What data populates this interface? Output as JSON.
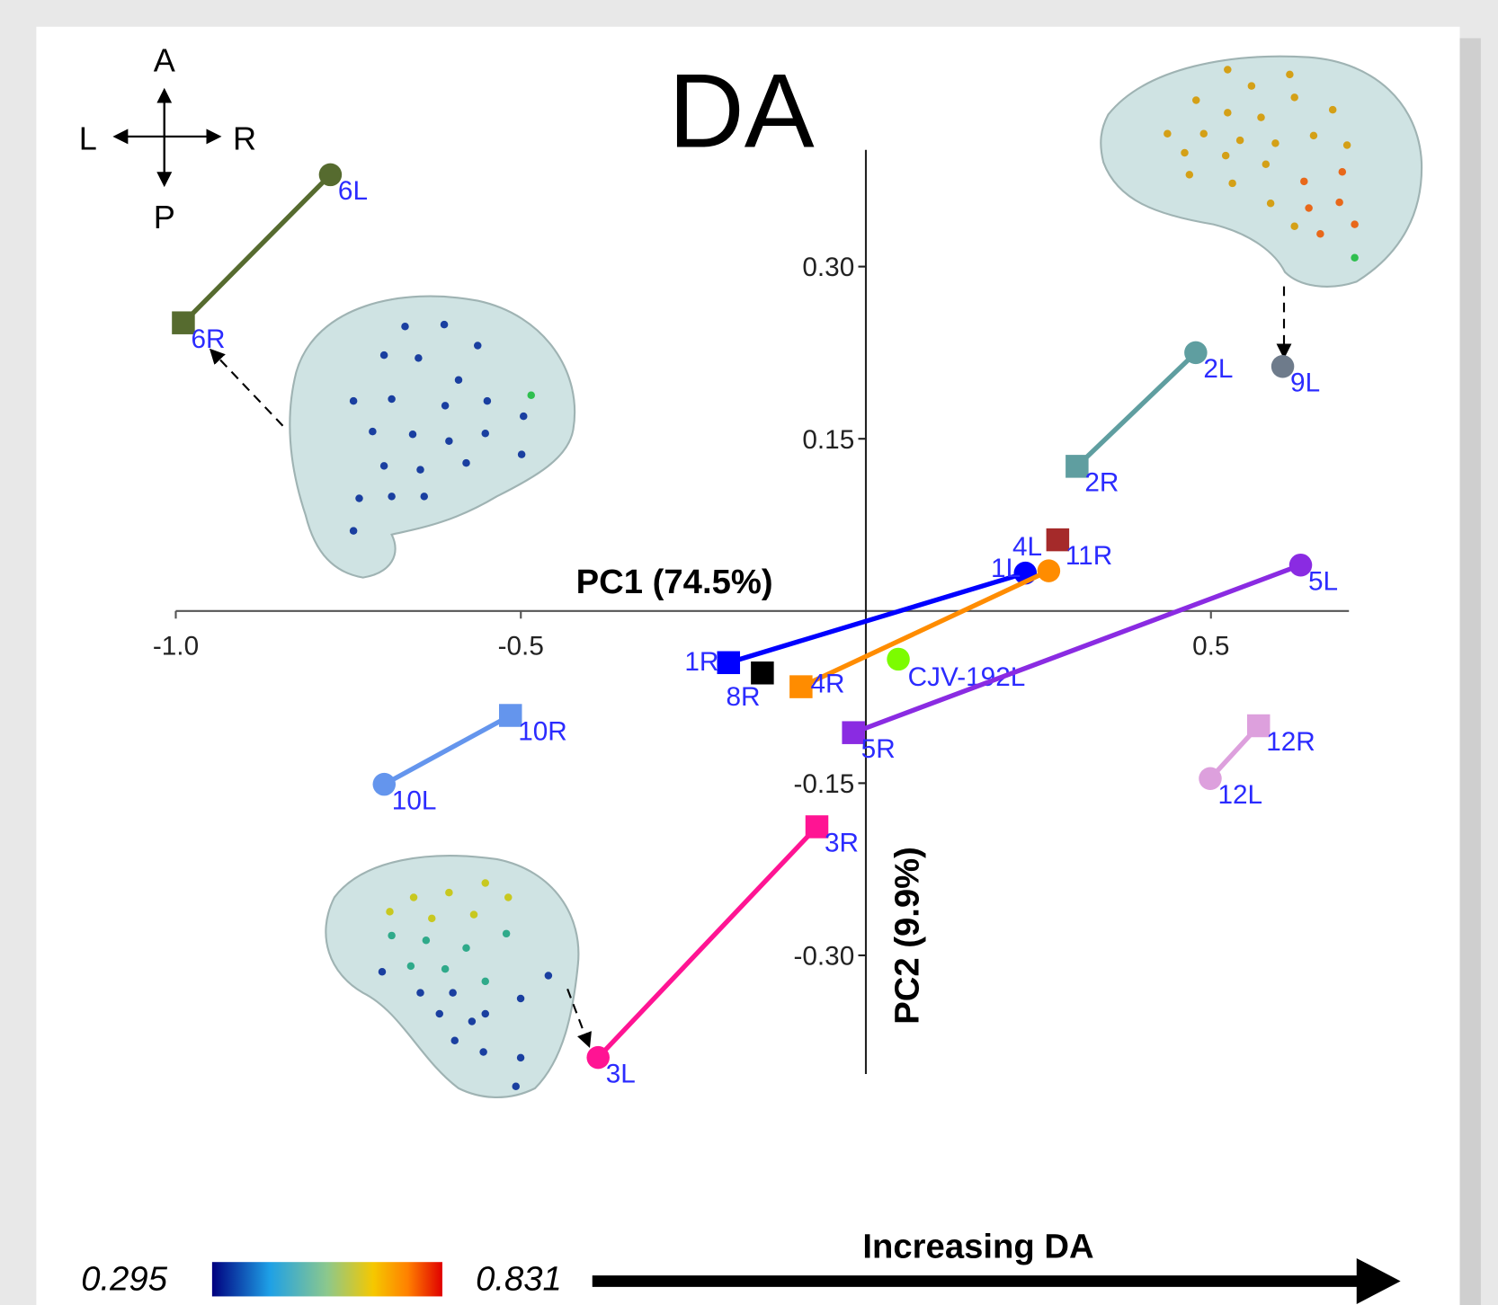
{
  "chart_data": {
    "type": "scatter",
    "title": "DA",
    "x_label": "PC1 (74.5%)",
    "y_label": "PC2 (9.9%)",
    "xlim": [
      -1.0,
      0.7
    ],
    "ylim": [
      -0.4,
      0.4
    ],
    "xticks": [
      {
        "value": -1.0,
        "label": "-1.0"
      },
      -0.5,
      0.5
    ],
    "yticks": [
      {
        "value": 0.3,
        "label": "0.30"
      },
      0.15,
      -0.15,
      {
        "value": -0.3,
        "label": "-0.30"
      }
    ],
    "series": [
      {
        "color": "#566b2f",
        "labels": [
          "6L",
          "6R"
        ],
        "markers": [
          "circle",
          "square"
        ],
        "x": [
          -0.776,
          -0.989
        ],
        "y": [
          0.38,
          0.251
        ]
      },
      {
        "color": "#5f9ea0",
        "labels": [
          "2L",
          "2R"
        ],
        "markers": [
          "circle",
          "square"
        ],
        "x": [
          0.478,
          0.306
        ],
        "y": [
          0.225,
          0.126
        ]
      },
      {
        "color": "#6e7b8b",
        "labels": [
          "9L"
        ],
        "markers": [
          "circle"
        ],
        "x": [
          0.604
        ],
        "y": [
          0.213
        ]
      },
      {
        "color": "#a52a2a",
        "labels": [
          "11R"
        ],
        "markers": [
          "square"
        ],
        "x": [
          0.278
        ],
        "y": [
          0.062
        ]
      },
      {
        "color": "#0000ff",
        "labels": [
          "1L",
          "1R"
        ],
        "markers": [
          "circle",
          "square"
        ],
        "x": [
          0.231,
          -0.199
        ],
        "y": [
          0.033,
          -0.045
        ]
      },
      {
        "color": "#ff8c00",
        "labels": [
          "4L",
          "4R"
        ],
        "markers": [
          "circle",
          "square"
        ],
        "x": [
          0.265,
          -0.094
        ],
        "y": [
          0.035,
          -0.066
        ]
      },
      {
        "color": "#000000",
        "labels": [
          "8R"
        ],
        "markers": [
          "square"
        ],
        "x": [
          -0.15
        ],
        "y": [
          -0.054
        ]
      },
      {
        "color": "#7cfc00",
        "labels": [
          "CJV-192L"
        ],
        "markers": [
          "circle"
        ],
        "x": [
          0.047
        ],
        "y": [
          -0.042
        ]
      },
      {
        "color": "#8a2be2",
        "labels": [
          "5L",
          "5R"
        ],
        "markers": [
          "circle",
          "square"
        ],
        "x": [
          0.63,
          -0.018
        ],
        "y": [
          0.04,
          -0.106
        ]
      },
      {
        "color": "#6495ed",
        "labels": [
          "10R",
          "10L"
        ],
        "markers": [
          "square",
          "circle"
        ],
        "x": [
          -0.515,
          -0.698
        ],
        "y": [
          -0.091,
          -0.151
        ]
      },
      {
        "color": "#dda0dd",
        "labels": [
          "12R",
          "12L"
        ],
        "markers": [
          "square",
          "circle"
        ],
        "x": [
          0.569,
          0.499
        ],
        "y": [
          -0.1,
          -0.146
        ]
      },
      {
        "color": "#ff1493",
        "labels": [
          "3R",
          "3L"
        ],
        "markers": [
          "square",
          "circle"
        ],
        "x": [
          -0.071,
          -0.388
        ],
        "y": [
          -0.188,
          -0.389
        ]
      }
    ],
    "compass": {
      "anterior": "A",
      "posterior": "P",
      "left": "L",
      "right": "R"
    },
    "colorbar": {
      "min": 0.295,
      "max": 0.831
    },
    "trend_label": "Increasing DA"
  }
}
